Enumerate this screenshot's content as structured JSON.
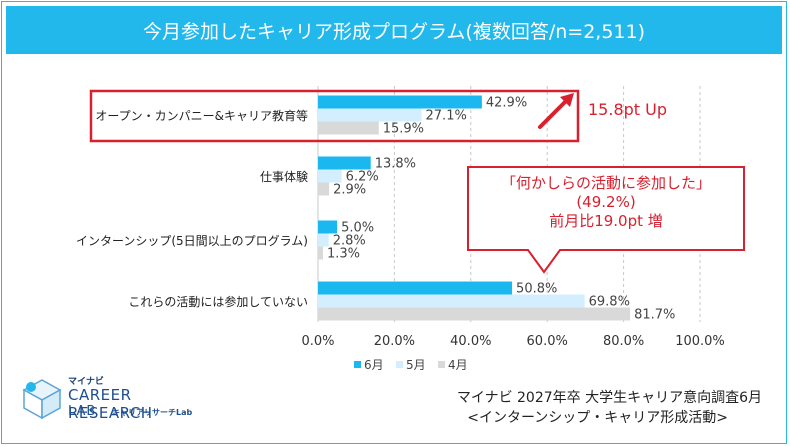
{
  "title": "今月参加したキャリア形成プログラム(複数回答/n=2,511)",
  "callout": {
    "line1": "「何かしらの活動に参加した」",
    "line2": "(49.2%)",
    "line3": "前月比19.0pt 増"
  },
  "up_note": "15.8pt Up",
  "source": {
    "line1": "マイナビ 2027年卒 大学生キャリア意向調査6月",
    "line2": "<インターンシップ・キャリア形成活動>"
  },
  "logo": {
    "brand": "マイナビ",
    "name_line1": "CAREER RESEARCH",
    "name_line2": "LAB",
    "sub": "キャリアリサーチLab"
  },
  "colors": {
    "june": "#1bb8f0",
    "may": "#d3efff",
    "april": "#d9d9d9",
    "accent": "#d8202f",
    "title_bg": "#22b8ec"
  },
  "chart_data": {
    "type": "bar",
    "orientation": "horizontal",
    "categories": [
      "オープン・カンパニー&キャリア教育等",
      "仕事体験",
      "インターンシップ(5日間以上のプログラム)",
      "これらの活動には参加していない"
    ],
    "series": [
      {
        "name": "6月",
        "values": [
          42.9,
          13.8,
          5.0,
          50.8
        ]
      },
      {
        "name": "5月",
        "values": [
          27.1,
          6.2,
          2.8,
          69.8
        ]
      },
      {
        "name": "4月",
        "values": [
          15.9,
          2.9,
          1.3,
          81.7
        ]
      }
    ],
    "value_labels": [
      [
        "42.9%",
        "13.8%",
        "5.0%",
        "50.8%"
      ],
      [
        "27.1%",
        "6.2%",
        "2.8%",
        "69.8%"
      ],
      [
        "15.9%",
        "2.9%",
        "1.3%",
        "81.7%"
      ]
    ],
    "x_ticks": [
      "0.0%",
      "20.0%",
      "40.0%",
      "60.0%",
      "80.0%",
      "100.0%"
    ],
    "xlim": [
      0,
      100
    ],
    "grid": true,
    "legend_position": "bottom"
  }
}
